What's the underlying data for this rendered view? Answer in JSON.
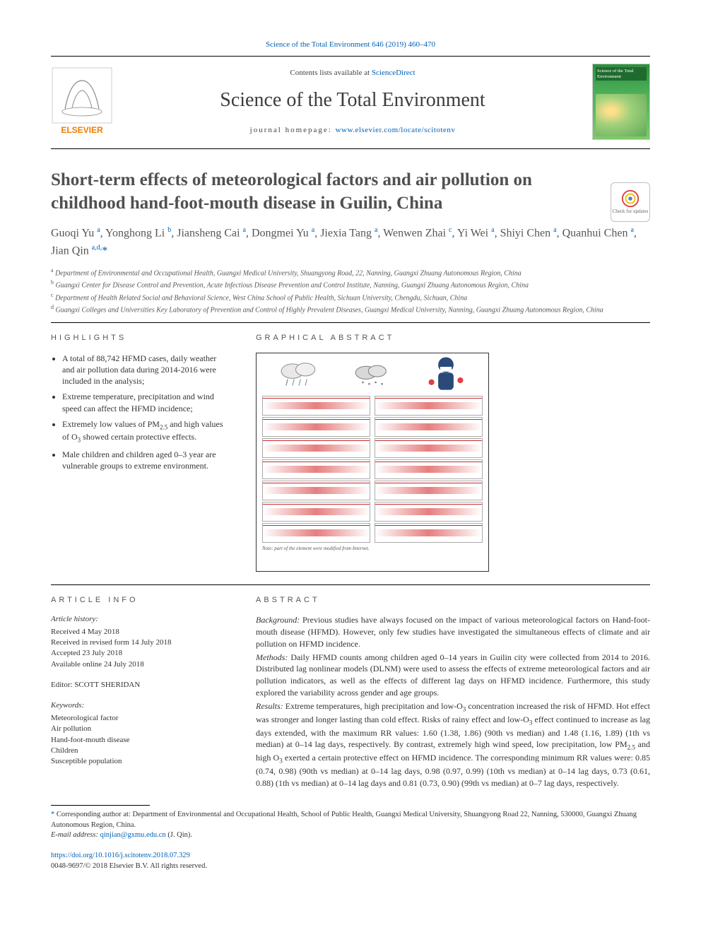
{
  "citation_top": "Science of the Total Environment 646 (2019) 460–470",
  "header": {
    "contents_prefix": "Contents lists available at ",
    "contents_link": "ScienceDirect",
    "journal_name": "Science of the Total Environment",
    "homepage_label": "journal homepage: ",
    "homepage_url": "www.elsevier.com/locate/scitotenv",
    "cover_text": "Science of the Total Environment",
    "elsevier_label": "ELSEVIER"
  },
  "crossmark_label": "Check for updates",
  "title": "Short-term effects of meteorological factors and air pollution on childhood hand-foot-mouth disease in Guilin, China",
  "authors_html": "Guoqi Yu <sup>a</sup>, Yonghong Li <sup>b</sup>, Jiansheng Cai <sup>a</sup>, Dongmei Yu <sup>a</sup>, Jiexia Tang <sup>a</sup>, Wenwen Zhai <sup>c</sup>, Yi Wei <sup>a</sup>, Shiyi Chen <sup>a</sup>, Quanhui Chen <sup>a</sup>, Jian Qin <sup>a,d,</sup><span class='star'>*</span>",
  "affiliations": [
    {
      "key": "a",
      "text": "Department of Environmental and Occupational Health, Guangxi Medical University, Shuangyong Road, 22, Nanning, Guangxi Zhuang Autonomous Region, China"
    },
    {
      "key": "b",
      "text": "Guangxi Center for Disease Control and Prevention, Acute Infectious Disease Prevention and Control Institute, Nanning, Guangxi Zhuang Autonomous Region, China"
    },
    {
      "key": "c",
      "text": "Department of Health Related Social and Behavioral Science, West China School of Public Health, Sichuan University, Chengdu, Sichuan, China"
    },
    {
      "key": "d",
      "text": "Guangxi Colleges and Universities Key Laboratory of Prevention and Control of Highly Prevalent Diseases, Guangxi Medical University, Nanning, Guangxi Zhuang Autonomous Region, China"
    }
  ],
  "highlights_heading": "HIGHLIGHTS",
  "highlights": [
    "A total of 88,742 HFMD cases, daily weather and air pollution data during 2014-2016 were included in the analysis;",
    "Extreme temperature, precipitation and wind speed can affect the HFMD incidence;",
    "Extremely low values of PM₂.₅ and high values of O₃ showed certain protective effects.",
    "Male children and children aged 0–3 year are vulnerable groups to extreme environment."
  ],
  "graphical_heading": "GRAPHICAL ABSTRACT",
  "graphical_caption": "Note: part of the element were modified from Internet.",
  "article_info_heading": "ARTICLE INFO",
  "article_info": {
    "history_label": "Article history:",
    "received": "Received 4 May 2018",
    "revised": "Received in revised form 14 July 2018",
    "accepted": "Accepted 23 July 2018",
    "online": "Available online 24 July 2018",
    "editor_label": "Editor: ",
    "editor_name": "SCOTT SHERIDAN",
    "keywords_label": "Keywords:",
    "keywords": [
      "Meteorological factor",
      "Air pollution",
      "Hand-foot-mouth disease",
      "Children",
      "Susceptible population"
    ]
  },
  "abstract_heading": "ABSTRACT",
  "abstract": {
    "background_label": "Background:",
    "background": " Previous studies have always focused on the impact of various meteorological factors on Hand-foot-mouth disease (HFMD). However, only few studies have investigated the simultaneous effects of climate and air pollution on HFMD incidence.",
    "methods_label": "Methods:",
    "methods": " Daily HFMD counts among children aged 0–14 years in Guilin city were collected from 2014 to 2016. Distributed lag nonlinear models (DLNM) were used to assess the effects of extreme meteorological factors and air pollution indicators, as well as the effects of different lag days on HFMD incidence. Furthermore, this study explored the variability across gender and age groups.",
    "results_label": "Results:",
    "results": " Extreme temperatures, high precipitation and low-O₃ concentration increased the risk of HFMD. Hot effect was stronger and longer lasting than cold effect. Risks of rainy effect and low-O₃ effect continued to increase as lag days extended, with the maximum RR values: 1.60 (1.38, 1.86) (90th vs median) and 1.48 (1.16, 1.89) (1th vs median) at 0–14 lag days, respectively. By contrast, extremely high wind speed, low precipitation, low PM₂.₅ and high O₃ exerted a certain protective effect on HFMD incidence. The corresponding minimum RR values were: 0.85 (0.74, 0.98) (90th vs median) at 0–14 lag days, 0.98 (0.97, 0.99) (10th vs median) at 0–14 lag days, 0.73 (0.61, 0.88) (1th vs median) at 0–14 lag days and 0.81 (0.73, 0.90) (99th vs median) at 0–7 lag days, respectively."
  },
  "footnotes": {
    "corresponding": "Corresponding author at: Department of Environmental and Occupational Health, School of Public Health, Guangxi Medical University, Shuangyong Road 22, Nanning, 530000, Guangxi Zhuang Autonomous Region, China.",
    "email_label": "E-mail address: ",
    "email": "qinjian@gxmu.edu.cn",
    "email_who": " (J. Qin)."
  },
  "doi": "https://doi.org/10.1016/j.scitotenv.2018.07.329",
  "issn_copyright": "0048-9697/© 2018 Elsevier B.V. All rights reserved.",
  "colors": {
    "link": "#0061b5",
    "text": "#333333",
    "heading": "#505050",
    "accent_red": "#c92a2a",
    "cover_green_top": "#2d8f3e",
    "cover_green_bottom": "#7fc96a",
    "elsevier_orange": "#ef7d00"
  },
  "graphical_abs": {
    "type": "panel-grid",
    "rows": 7,
    "cols": 2,
    "panel_border": "#aaaaaa",
    "line_color": "#c92a2a",
    "band_color": "rgba(214,40,40,0.6)"
  }
}
